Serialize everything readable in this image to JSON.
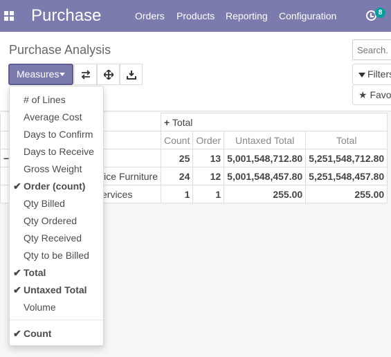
{
  "navbar": {
    "brand": "Purchase",
    "menu": [
      "Orders",
      "Products",
      "Reporting",
      "Configuration"
    ],
    "activity_count": "8",
    "accent": "#7c7bad"
  },
  "control_panel": {
    "title": "Purchase Analysis",
    "search_placeholder": "Search...",
    "measures_label": "Measures",
    "filters_label": "Filters",
    "favorites_label": "Favorites",
    "tool_icons": [
      "flip-axis-icon",
      "expand-all-icon",
      "download-icon"
    ]
  },
  "measures_menu": {
    "items": [
      {
        "label": "# of Lines",
        "selected": false
      },
      {
        "label": "Average Cost",
        "selected": false
      },
      {
        "label": "Days to Confirm",
        "selected": false
      },
      {
        "label": "Days to Receive",
        "selected": false
      },
      {
        "label": "Gross Weight",
        "selected": false
      },
      {
        "label": "Order (count)",
        "selected": true
      },
      {
        "label": "Qty Billed",
        "selected": false
      },
      {
        "label": "Qty Ordered",
        "selected": false
      },
      {
        "label": "Qty Received",
        "selected": false
      },
      {
        "label": "Qty to be Billed",
        "selected": false
      },
      {
        "label": "Total",
        "selected": true
      },
      {
        "label": "Untaxed Total",
        "selected": true
      },
      {
        "label": "Volume",
        "selected": false
      }
    ],
    "count_item": {
      "label": "Count",
      "selected": true
    }
  },
  "pivot": {
    "col_header": "Total",
    "measures": [
      "Count",
      "Order",
      "Untaxed Total",
      "Total"
    ],
    "rows": [
      {
        "label": "",
        "count": "25",
        "order": "13",
        "untaxed": "5,001,548,712.80",
        "total": "5,251,548,712.80"
      },
      {
        "label": "ffice Furniture",
        "count": "24",
        "order": "12",
        "untaxed": "5,001,548,457.80",
        "total": "5,251,548,457.80"
      },
      {
        "label": "ervices",
        "count": "1",
        "order": "1",
        "untaxed": "255.00",
        "total": "255.00"
      }
    ]
  }
}
